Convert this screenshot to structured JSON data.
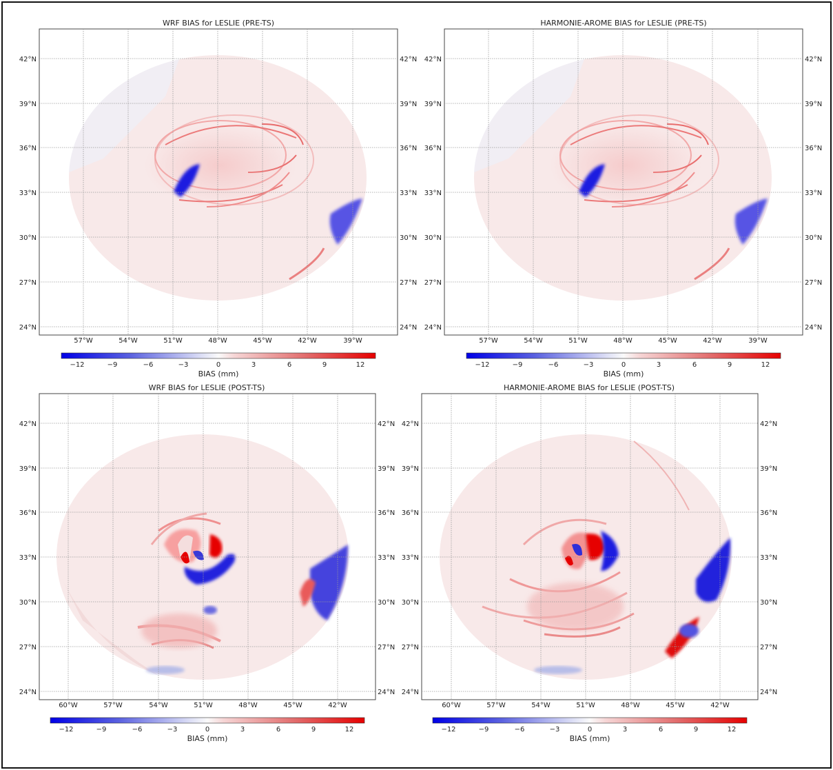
{
  "panels": [
    {
      "title": "WRF BIAS for LESLIE (PRE-TS)",
      "lat_labels": [
        "42°N",
        "39°N",
        "36°N",
        "33°N",
        "30°N",
        "27°N",
        "24°N"
      ],
      "lon_labels": [
        "57°W",
        "54°W",
        "51°W",
        "48°W",
        "45°W",
        "42°W",
        "39°W"
      ],
      "colorbar_ticks": [
        "−12",
        "−9",
        "−6",
        "−3",
        "0",
        "3",
        "6",
        "9",
        "12"
      ],
      "colorbar_label": "BIAS (mm)"
    },
    {
      "title": "HARMONIE-AROME BIAS for LESLIE (PRE-TS)",
      "lat_labels": [
        "42°N",
        "39°N",
        "36°N",
        "33°N",
        "30°N",
        "27°N",
        "24°N"
      ],
      "lon_labels": [
        "57°W",
        "54°W",
        "51°W",
        "48°W",
        "45°W",
        "42°W",
        "39°W"
      ],
      "colorbar_ticks": [
        "−12",
        "−9",
        "−6",
        "−3",
        "0",
        "3",
        "6",
        "9",
        "12"
      ],
      "colorbar_label": "BIAS (mm)"
    },
    {
      "title": "WRF BIAS for LESLIE (POST-TS)",
      "lat_labels": [
        "42°N",
        "39°N",
        "36°N",
        "33°N",
        "30°N",
        "27°N",
        "24°N"
      ],
      "lon_labels": [
        "60°W",
        "57°W",
        "54°W",
        "51°W",
        "48°W",
        "45°W",
        "42°W"
      ],
      "colorbar_ticks": [
        "−12",
        "−9",
        "−6",
        "−3",
        "0",
        "3",
        "6",
        "9",
        "12"
      ],
      "colorbar_label": "BIAS (mm)"
    },
    {
      "title": "HARMONIE-AROME BIAS for LESLIE (POST-TS)",
      "lat_labels": [
        "42°N",
        "39°N",
        "36°N",
        "33°N",
        "30°N",
        "27°N",
        "24°N"
      ],
      "lon_labels": [
        "60°W",
        "57°W",
        "54°W",
        "51°W",
        "48°W",
        "45°W",
        "42°W"
      ],
      "colorbar_ticks": [
        "−12",
        "−9",
        "−6",
        "−3",
        "0",
        "3",
        "6",
        "9",
        "12"
      ],
      "colorbar_label": "BIAS (mm)"
    }
  ],
  "colors": {
    "negative": "#0000e6",
    "neutral": "#f4f4f6",
    "positive": "#e60000",
    "grid": "#9a9a9a",
    "frame": "#222222"
  }
}
